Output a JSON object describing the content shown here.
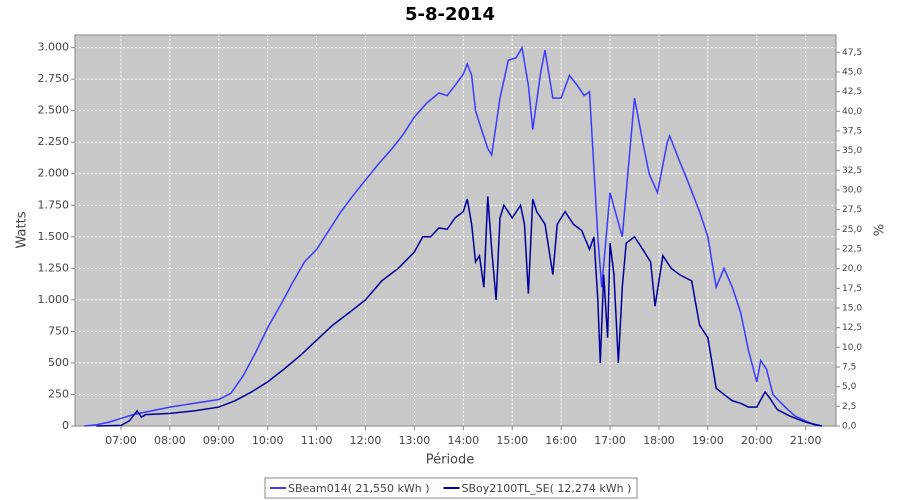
{
  "chart_data": {
    "type": "line",
    "title": "5-8-2014",
    "x_label": "Période",
    "y_label": "Watts",
    "y2_label": "%",
    "xlim": [
      6.06,
      21.62
    ],
    "ylim": [
      0,
      3100
    ],
    "y2lim": [
      0,
      49.7
    ],
    "grid": true,
    "xticks": [
      {
        "value": 7,
        "label": "07:00"
      },
      {
        "value": 8,
        "label": "08:00"
      },
      {
        "value": 9,
        "label": "09:00"
      },
      {
        "value": 10,
        "label": "10:00"
      },
      {
        "value": 11,
        "label": "11:00"
      },
      {
        "value": 12,
        "label": "12:00"
      },
      {
        "value": 13,
        "label": "13:00"
      },
      {
        "value": 14,
        "label": "14:00"
      },
      {
        "value": 15,
        "label": "15:00"
      },
      {
        "value": 16,
        "label": "16:00"
      },
      {
        "value": 17,
        "label": "17:00"
      },
      {
        "value": 18,
        "label": "18:00"
      },
      {
        "value": 19,
        "label": "19:00"
      },
      {
        "value": 20,
        "label": "20:00"
      },
      {
        "value": 21,
        "label": "21:00"
      }
    ],
    "yticks": [
      0,
      250,
      500,
      750,
      {
        "value": 1000,
        "label": "1.000"
      },
      {
        "value": 1250,
        "label": "1.250"
      },
      {
        "value": 1500,
        "label": "1.500"
      },
      {
        "value": 1750,
        "label": "1.750"
      },
      {
        "value": 2000,
        "label": "2.000"
      },
      {
        "value": 2250,
        "label": "2.250"
      },
      {
        "value": 2500,
        "label": "2.500"
      },
      {
        "value": 2750,
        "label": "2.750"
      },
      {
        "value": 3000,
        "label": "3.000"
      }
    ],
    "y2ticks": [
      {
        "value": 0,
        "label": "0,0"
      },
      {
        "value": 2.5,
        "label": "2,5"
      },
      {
        "value": 5,
        "label": "5,0"
      },
      {
        "value": 7.5,
        "label": "7,5"
      },
      {
        "value": 10,
        "label": "10,0"
      },
      {
        "value": 12.5,
        "label": "12,5"
      },
      {
        "value": 15,
        "label": "15,0"
      },
      {
        "value": 17.5,
        "label": "17,5"
      },
      {
        "value": 20,
        "label": "20,0"
      },
      {
        "value": 22.5,
        "label": "22,5"
      },
      {
        "value": 25,
        "label": "25,0"
      },
      {
        "value": 27.5,
        "label": "27,5"
      },
      {
        "value": 30,
        "label": "30,0"
      },
      {
        "value": 32.5,
        "label": "32,5"
      },
      {
        "value": 35,
        "label": "35,0"
      },
      {
        "value": 37.5,
        "label": "37,5"
      },
      {
        "value": 40,
        "label": "40,0"
      },
      {
        "value": 42.5,
        "label": "42,5"
      },
      {
        "value": 45,
        "label": "45,0"
      },
      {
        "value": 47.5,
        "label": "47,5"
      }
    ],
    "series": [
      {
        "name": "SBeam014( 21,550 kWh )",
        "color": "#3a3aff",
        "x": [
          6.25,
          6.5,
          6.75,
          7,
          7.25,
          7.5,
          7.75,
          8,
          8.25,
          8.5,
          8.75,
          9,
          9.25,
          9.5,
          9.75,
          10,
          10.25,
          10.5,
          10.75,
          11,
          11.25,
          11.5,
          11.75,
          12,
          12.25,
          12.5,
          12.75,
          13,
          13.25,
          13.5,
          13.67,
          13.83,
          14,
          14.08,
          14.17,
          14.25,
          14.33,
          14.5,
          14.58,
          14.75,
          14.92,
          15.08,
          15.2,
          15.33,
          15.42,
          15.58,
          15.67,
          15.83,
          16,
          16.17,
          16.33,
          16.47,
          16.58,
          16.75,
          16.83,
          17,
          17.25,
          17.5,
          17.67,
          17.8,
          17.97,
          18.17,
          18.22,
          18.42,
          18.58,
          18.83,
          19,
          19.17,
          19.33,
          19.5,
          19.67,
          19.83,
          20,
          20.08,
          20.2,
          20.33,
          20.58,
          20.78,
          21,
          21.17,
          21.33
        ],
        "values": [
          0,
          10,
          30,
          60,
          90,
          110,
          130,
          150,
          165,
          180,
          195,
          210,
          260,
          400,
          580,
          780,
          950,
          1130,
          1300,
          1400,
          1550,
          1700,
          1830,
          1950,
          2070,
          2180,
          2300,
          2450,
          2560,
          2640,
          2620,
          2700,
          2790,
          2870,
          2780,
          2500,
          2400,
          2200,
          2150,
          2600,
          2900,
          2920,
          3000,
          2700,
          2350,
          2800,
          2980,
          2600,
          2600,
          2780,
          2700,
          2620,
          2650,
          1500,
          1100,
          1850,
          1500,
          2600,
          2250,
          2000,
          1850,
          2250,
          2300,
          2100,
          1950,
          1700,
          1500,
          1100,
          1250,
          1100,
          900,
          600,
          350,
          520,
          450,
          250,
          150,
          80,
          40,
          10,
          0
        ]
      },
      {
        "name": "SBoy2100TL_SE( 12,274 kWh )",
        "color": "#000099",
        "x": [
          6.5,
          7,
          7.17,
          7.33,
          7.42,
          7.5,
          8,
          8.5,
          9,
          9.33,
          9.67,
          10,
          10.33,
          10.67,
          11,
          11.33,
          11.67,
          12,
          12.33,
          12.67,
          13,
          13.17,
          13.33,
          13.5,
          13.67,
          13.83,
          14,
          14.08,
          14.17,
          14.25,
          14.33,
          14.42,
          14.5,
          14.58,
          14.67,
          14.75,
          14.83,
          15,
          15.17,
          15.25,
          15.33,
          15.42,
          15.5,
          15.67,
          15.75,
          15.83,
          15.92,
          16.08,
          16.25,
          16.42,
          16.58,
          16.67,
          16.75,
          16.8,
          16.87,
          16.95,
          17,
          17.08,
          17.17,
          17.25,
          17.33,
          17.5,
          17.67,
          17.83,
          17.92,
          18.08,
          18.25,
          18.42,
          18.67,
          18.83,
          19,
          19.17,
          19.33,
          19.5,
          19.67,
          19.83,
          20,
          20.17,
          20.25,
          20.42,
          20.67,
          21,
          21.33
        ],
        "values": [
          0,
          5,
          40,
          120,
          70,
          90,
          100,
          120,
          150,
          200,
          270,
          350,
          450,
          560,
          680,
          800,
          900,
          1000,
          1150,
          1250,
          1380,
          1500,
          1500,
          1570,
          1560,
          1650,
          1700,
          1800,
          1600,
          1300,
          1350,
          1100,
          1820,
          1400,
          1000,
          1650,
          1750,
          1650,
          1750,
          1600,
          1050,
          1800,
          1700,
          1600,
          1400,
          1200,
          1600,
          1700,
          1600,
          1550,
          1400,
          1500,
          1000,
          500,
          1200,
          700,
          1450,
          1200,
          500,
          1100,
          1450,
          1500,
          1400,
          1300,
          950,
          1350,
          1250,
          1200,
          1150,
          800,
          700,
          300,
          250,
          200,
          180,
          150,
          150,
          270,
          230,
          130,
          80,
          30,
          0
        ]
      }
    ]
  }
}
